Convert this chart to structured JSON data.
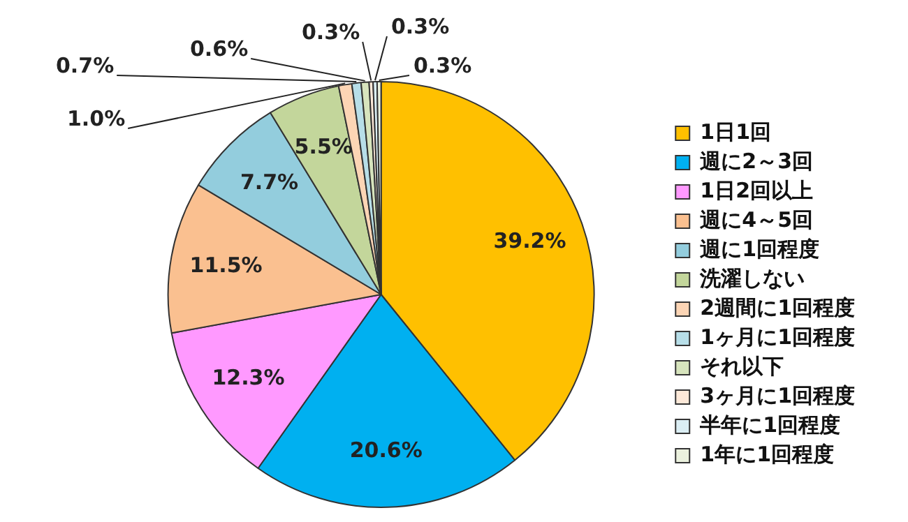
{
  "chart_data": {
    "type": "pie",
    "categories": [
      "1日1回",
      "週に2～3回",
      "1日2回以上",
      "週に4～5回",
      "週に1回程度",
      "洗濯しない",
      "2週間に1回程度",
      "1ヶ月に1回程度",
      "それ以下",
      "3ヶ月に1回程度",
      "半年に1回程度",
      "1年に1回程度"
    ],
    "values": [
      39.2,
      20.6,
      12.3,
      11.5,
      7.7,
      5.5,
      1.0,
      0.7,
      0.6,
      0.3,
      0.3,
      0.3
    ],
    "colors": [
      "#ffc000",
      "#00b0f0",
      "#ff99ff",
      "#fac090",
      "#93cddd",
      "#c3d69b",
      "#fcd5b5",
      "#b7dee8",
      "#d7e4bd",
      "#fde9d9",
      "#dbeef4",
      "#ebf1de"
    ],
    "value_labels": [
      "39.2%",
      "20.6%",
      "12.3%",
      "11.5%",
      "7.7%",
      "5.5%",
      "1.0%",
      "0.7%",
      "0.6%",
      "0.3%",
      "0.3%",
      "0.3%"
    ],
    "legend": "right"
  }
}
